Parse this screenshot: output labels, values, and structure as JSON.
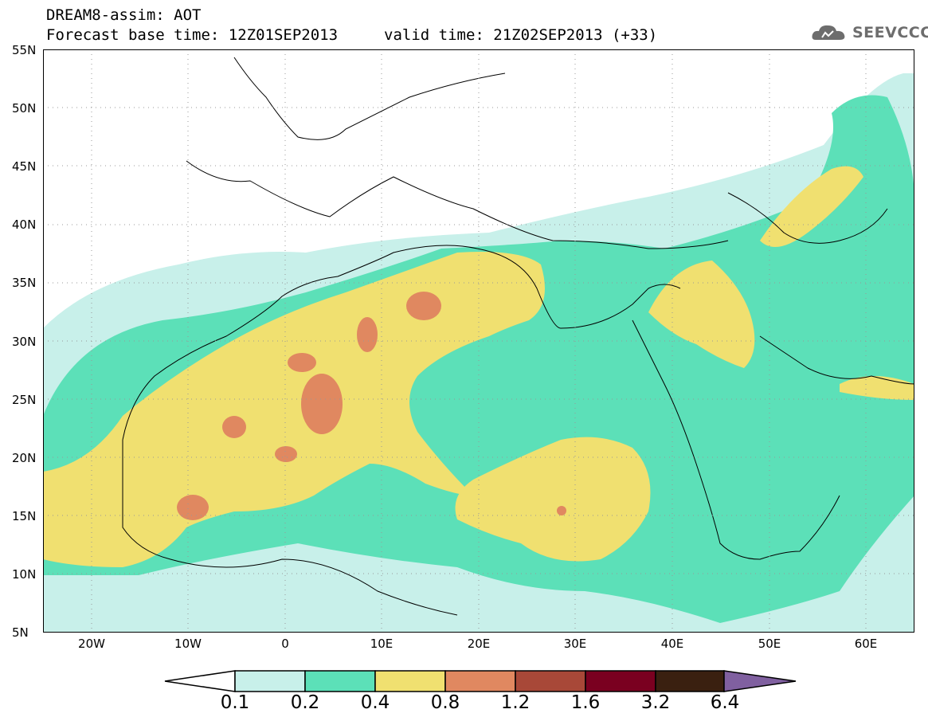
{
  "header": {
    "line1": "DREAM8-assim: AOT",
    "line2": "Forecast base time: 12Z01SEP2013",
    "line3": "valid time: 21Z02SEP2013 (+33)"
  },
  "logo": {
    "text": "SEEVCCC",
    "icon": "cloud-icon"
  },
  "map": {
    "lat_labels": [
      "55N",
      "50N",
      "45N",
      "40N",
      "35N",
      "30N",
      "25N",
      "20N",
      "15N",
      "10N",
      "5N"
    ],
    "lon_labels": [
      "20W",
      "10W",
      "0",
      "10E",
      "20E",
      "30E",
      "40E",
      "50E",
      "60E"
    ],
    "lon_range": [
      -25,
      65
    ],
    "lat_range": [
      5,
      55
    ]
  },
  "colorbar": {
    "levels": [
      "0.1",
      "0.2",
      "0.4",
      "0.8",
      "1.2",
      "1.6",
      "3.2",
      "6.4"
    ],
    "colors": [
      "#c8f0ea",
      "#5ce0b8",
      "#f0e070",
      "#e08860",
      "#a84838",
      "#7a0020",
      "#3a2010",
      "#8060a0"
    ],
    "under_color": "#ffffff"
  }
}
